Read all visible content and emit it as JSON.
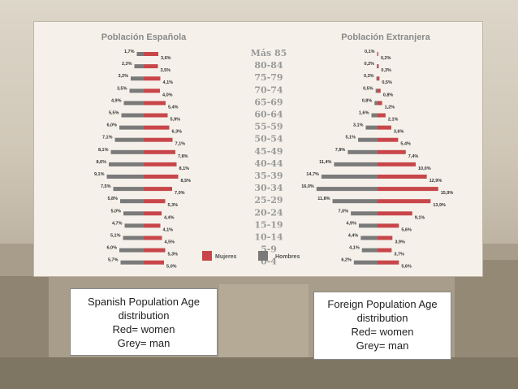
{
  "chart_data": [
    {
      "type": "bar",
      "title": "Población Española",
      "categories": [
        "Más 85",
        "80-84",
        "75-79",
        "70-74",
        "65-69",
        "60-64",
        "55-59",
        "50-54",
        "45-49",
        "40-44",
        "35-39",
        "30-34",
        "25-29",
        "20-24",
        "15-19",
        "10-14",
        "5-9",
        "0-4"
      ],
      "series": [
        {
          "name": "Hombres",
          "values": [
            1.7,
            2.3,
            3.2,
            3.5,
            4.9,
            5.5,
            6.0,
            7.1,
            8.1,
            8.6,
            9.1,
            7.5,
            5.8,
            5.0,
            4.7,
            5.1,
            6.0,
            5.7
          ]
        },
        {
          "name": "Mujeres",
          "values": [
            3.6,
            3.5,
            4.1,
            4.0,
            5.4,
            5.9,
            6.3,
            7.1,
            7.8,
            8.1,
            8.5,
            7.0,
            5.3,
            4.4,
            4.1,
            4.5,
            5.3,
            5.0
          ]
        }
      ]
    },
    {
      "type": "bar",
      "title": "Población Extranjera",
      "categories": [
        "Más 85",
        "80-84",
        "75-79",
        "70-74",
        "65-69",
        "60-64",
        "55-59",
        "50-54",
        "45-49",
        "40-44",
        "35-39",
        "30-34",
        "25-29",
        "20-24",
        "15-19",
        "10-14",
        "5-9",
        "0-4"
      ],
      "series": [
        {
          "name": "Hombres",
          "values": [
            0.1,
            0.2,
            0.3,
            0.5,
            0.8,
            1.6,
            3.1,
            5.1,
            7.8,
            11.4,
            14.7,
            16.0,
            11.8,
            7.0,
            4.9,
            4.4,
            4.1,
            6.2
          ]
        },
        {
          "name": "Mujeres",
          "values": [
            0.2,
            0.3,
            0.5,
            0.8,
            1.2,
            2.1,
            3.6,
            5.4,
            7.4,
            10.0,
            12.9,
            15.9,
            13.9,
            9.1,
            5.6,
            3.9,
            3.7,
            5.6
          ]
        }
      ]
    }
  ],
  "legend": {
    "women": "Mujeres",
    "men": "Hombres"
  },
  "colors": {
    "women": "#c8464a",
    "men": "#7a7a7a"
  },
  "captions": {
    "left": [
      "Spanish Population Age",
      "distribution",
      "Red= women",
      "Grey= man"
    ],
    "right": [
      "Foreign Population Age",
      "distribution",
      "Red= women",
      "Grey= man"
    ]
  }
}
